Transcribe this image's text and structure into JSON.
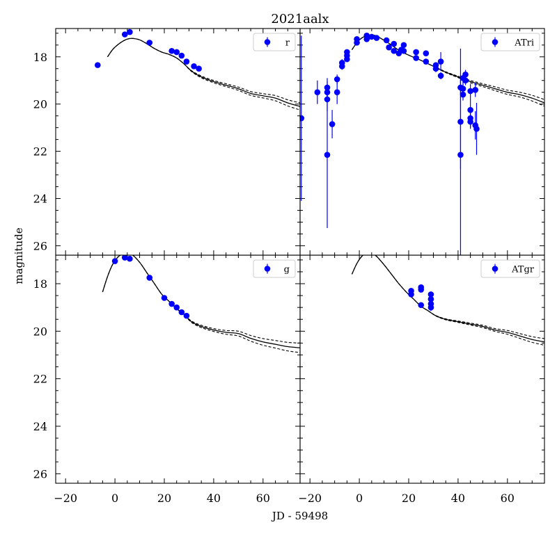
{
  "chart_data": {
    "type": "scatter",
    "title": "2021aalx",
    "xlabel": "JD - 59498",
    "ylabel": "magnitude",
    "xlim": [
      -24,
      75
    ],
    "ylim": [
      26.4,
      16.8
    ],
    "y_inverted": true,
    "grid": false,
    "legend_position": "top-right",
    "x_ticks": [
      -20,
      0,
      20,
      40,
      60
    ],
    "y_ticks": [
      18,
      20,
      22,
      24,
      26
    ],
    "marker_color": "#0000ff",
    "model_color": "#000000",
    "panels": [
      {
        "band": "r",
        "points": [
          {
            "x": -7,
            "y": 18.35,
            "err": 0.05
          },
          {
            "x": 4,
            "y": 17.05,
            "err": 0.05
          },
          {
            "x": 6,
            "y": 16.95,
            "err": 0.05
          },
          {
            "x": 14,
            "y": 17.4,
            "err": 0.05
          },
          {
            "x": 23,
            "y": 17.75,
            "err": 0.05
          },
          {
            "x": 25,
            "y": 17.8,
            "err": 0.05
          },
          {
            "x": 27,
            "y": 17.95,
            "err": 0.05
          },
          {
            "x": 29,
            "y": 18.2,
            "err": 0.05
          },
          {
            "x": 32,
            "y": 18.4,
            "err": 0.05
          },
          {
            "x": 34,
            "y": 18.5,
            "err": 0.05
          }
        ],
        "model": {
          "x": [
            -3,
            -1,
            1,
            3,
            5,
            7,
            10,
            13,
            16,
            19,
            22,
            25,
            28,
            31,
            35,
            40,
            45,
            50,
            55,
            60,
            65,
            70,
            75
          ],
          "y": [
            18.0,
            17.7,
            17.5,
            17.35,
            17.25,
            17.22,
            17.28,
            17.45,
            17.65,
            17.8,
            17.9,
            18.05,
            18.3,
            18.6,
            18.85,
            19.05,
            19.2,
            19.35,
            19.55,
            19.65,
            19.75,
            19.95,
            20.1
          ],
          "spread": [
            0,
            0,
            0,
            0,
            0,
            0,
            0,
            0,
            0,
            0,
            0,
            0,
            0,
            0.02,
            0.04,
            0.05,
            0.06,
            0.07,
            0.08,
            0.09,
            0.11,
            0.13,
            0.15
          ]
        }
      },
      {
        "band": "ATri",
        "points": [
          {
            "x": -23.5,
            "y": 20.6,
            "err": 3.5
          },
          {
            "x": -17,
            "y": 19.5,
            "err": 0.5
          },
          {
            "x": -13,
            "y": 19.3,
            "err": 0.4
          },
          {
            "x": -13,
            "y": 19.5,
            "err": 0.3
          },
          {
            "x": -13,
            "y": 19.8,
            "err": 0.5
          },
          {
            "x": -13,
            "y": 22.15,
            "err": 3.1
          },
          {
            "x": -11,
            "y": 20.85,
            "err": 0.6
          },
          {
            "x": -9,
            "y": 18.95,
            "err": 0.2
          },
          {
            "x": -9,
            "y": 19.5,
            "err": 0.5
          },
          {
            "x": -7,
            "y": 18.25,
            "err": 0.15
          },
          {
            "x": -7,
            "y": 18.4,
            "err": 0.15
          },
          {
            "x": -5,
            "y": 17.8,
            "err": 0.1
          },
          {
            "x": -5,
            "y": 17.95,
            "err": 0.1
          },
          {
            "x": -5,
            "y": 18.1,
            "err": 0.1
          },
          {
            "x": -1,
            "y": 17.25,
            "err": 0.1
          },
          {
            "x": -1,
            "y": 17.4,
            "err": 0.1
          },
          {
            "x": 3,
            "y": 17.1,
            "err": 0.1
          },
          {
            "x": 3,
            "y": 17.25,
            "err": 0.1
          },
          {
            "x": 5,
            "y": 17.15,
            "err": 0.1
          },
          {
            "x": 7,
            "y": 17.2,
            "err": 0.1
          },
          {
            "x": 11,
            "y": 17.3,
            "err": 0.1
          },
          {
            "x": 12,
            "y": 17.6,
            "err": 0.1
          },
          {
            "x": 14,
            "y": 17.45,
            "err": 0.1
          },
          {
            "x": 14,
            "y": 17.75,
            "err": 0.1
          },
          {
            "x": 16,
            "y": 17.85,
            "err": 0.1
          },
          {
            "x": 17,
            "y": 17.7,
            "err": 0.1
          },
          {
            "x": 18,
            "y": 17.5,
            "err": 0.1
          },
          {
            "x": 18,
            "y": 17.75,
            "err": 0.1
          },
          {
            "x": 23,
            "y": 17.8,
            "err": 0.1
          },
          {
            "x": 23,
            "y": 18.05,
            "err": 0.1
          },
          {
            "x": 27,
            "y": 17.85,
            "err": 0.1
          },
          {
            "x": 27,
            "y": 18.2,
            "err": 0.1
          },
          {
            "x": 31,
            "y": 18.35,
            "err": 0.1
          },
          {
            "x": 31,
            "y": 18.5,
            "err": 0.15
          },
          {
            "x": 33,
            "y": 18.2,
            "err": 0.4
          },
          {
            "x": 33,
            "y": 18.8,
            "err": 0.15
          },
          {
            "x": 41,
            "y": 19.3,
            "err": 0.3
          },
          {
            "x": 41,
            "y": 20.75,
            "err": 2.0
          },
          {
            "x": 41,
            "y": 22.15,
            "err": 4.5
          },
          {
            "x": 42,
            "y": 18.9,
            "err": 0.2
          },
          {
            "x": 42,
            "y": 19.35,
            "err": 0.3
          },
          {
            "x": 42,
            "y": 19.6,
            "err": 0.25
          },
          {
            "x": 43,
            "y": 18.75,
            "err": 0.2
          },
          {
            "x": 43,
            "y": 19.0,
            "err": 0.2
          },
          {
            "x": 45,
            "y": 19.45,
            "err": 0.3
          },
          {
            "x": 45,
            "y": 20.25,
            "err": 0.5
          },
          {
            "x": 45,
            "y": 20.6,
            "err": 0.4
          },
          {
            "x": 45,
            "y": 20.75,
            "err": 0.3
          },
          {
            "x": 47,
            "y": 19.4,
            "err": 0.3
          },
          {
            "x": 47,
            "y": 20.9,
            "err": 0.6
          },
          {
            "x": 47.5,
            "y": 21.05,
            "err": 1.1
          }
        ],
        "model": {
          "x": [
            -3,
            -1,
            1,
            3,
            5,
            7,
            10,
            13,
            16,
            19,
            22,
            25,
            28,
            31,
            35,
            40,
            45,
            50,
            55,
            60,
            65,
            70,
            75
          ],
          "y": [
            17.7,
            17.4,
            17.2,
            17.1,
            17.08,
            17.12,
            17.3,
            17.5,
            17.72,
            17.88,
            18.02,
            18.15,
            18.3,
            18.45,
            18.65,
            18.85,
            19.05,
            19.2,
            19.35,
            19.5,
            19.6,
            19.75,
            19.95
          ],
          "spread": [
            0,
            0,
            0,
            0,
            0,
            0,
            0,
            0,
            0,
            0,
            0,
            0,
            0,
            0.01,
            0.02,
            0.03,
            0.05,
            0.06,
            0.08,
            0.09,
            0.1,
            0.12,
            0.14
          ]
        }
      },
      {
        "band": "g",
        "points": [
          {
            "x": 0,
            "y": 17.05,
            "err": 0.05
          },
          {
            "x": 4,
            "y": 16.9,
            "err": 0.05
          },
          {
            "x": 6,
            "y": 16.95,
            "err": 0.05
          },
          {
            "x": 14,
            "y": 17.75,
            "err": 0.05
          },
          {
            "x": 20,
            "y": 18.6,
            "err": 0.05
          },
          {
            "x": 23,
            "y": 18.85,
            "err": 0.05
          },
          {
            "x": 25,
            "y": 19.0,
            "err": 0.05
          },
          {
            "x": 27,
            "y": 19.2,
            "err": 0.05
          },
          {
            "x": 29,
            "y": 19.35,
            "err": 0.05
          }
        ],
        "model": {
          "x": [
            -5,
            -3,
            -1,
            1,
            3,
            5,
            7,
            10,
            13,
            16,
            19,
            22,
            25,
            28,
            31,
            35,
            40,
            45,
            50,
            55,
            60,
            65,
            70,
            75
          ],
          "y": [
            18.35,
            17.7,
            17.2,
            16.9,
            16.75,
            16.7,
            16.78,
            17.1,
            17.55,
            18.0,
            18.45,
            18.75,
            19.05,
            19.3,
            19.6,
            19.8,
            19.95,
            20.05,
            20.1,
            20.3,
            20.45,
            20.55,
            20.65,
            20.7
          ],
          "spread": [
            0,
            0,
            0,
            0,
            0,
            0,
            0,
            0,
            0,
            0,
            0,
            0,
            0,
            0.01,
            0.03,
            0.05,
            0.06,
            0.08,
            0.1,
            0.12,
            0.14,
            0.16,
            0.18,
            0.2
          ]
        }
      },
      {
        "band": "ATgr",
        "points": [
          {
            "x": 21,
            "y": 18.3,
            "err": 0.1
          },
          {
            "x": 21,
            "y": 18.45,
            "err": 0.1
          },
          {
            "x": 25,
            "y": 18.15,
            "err": 0.1
          },
          {
            "x": 25,
            "y": 18.25,
            "err": 0.1
          },
          {
            "x": 25,
            "y": 18.9,
            "err": 0.1
          },
          {
            "x": 29,
            "y": 18.45,
            "err": 0.1
          },
          {
            "x": 29,
            "y": 18.65,
            "err": 0.1
          },
          {
            "x": 29,
            "y": 18.85,
            "err": 0.1
          },
          {
            "x": 29,
            "y": 19.0,
            "err": 0.15
          }
        ],
        "model": {
          "x": [
            -3,
            -1,
            1,
            3,
            5,
            7,
            10,
            13,
            16,
            19,
            22,
            25,
            28,
            31,
            35,
            40,
            45,
            50,
            55,
            60,
            65,
            70,
            75
          ],
          "y": [
            17.6,
            17.15,
            16.85,
            16.7,
            16.72,
            16.85,
            17.2,
            17.6,
            18.0,
            18.35,
            18.65,
            18.95,
            19.15,
            19.35,
            19.5,
            19.6,
            19.7,
            19.8,
            19.95,
            20.05,
            20.2,
            20.35,
            20.45
          ],
          "spread": [
            0,
            0,
            0,
            0,
            0,
            0,
            0,
            0,
            0,
            0,
            0,
            0,
            0,
            0.01,
            0.02,
            0.03,
            0.04,
            0.05,
            0.06,
            0.08,
            0.1,
            0.12,
            0.14
          ]
        }
      }
    ]
  }
}
